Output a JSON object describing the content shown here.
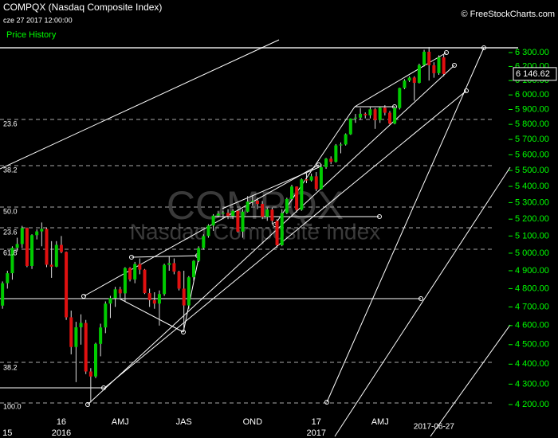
{
  "header": {
    "title": "COMPQX (Nasdaq Composite Index)",
    "timestamp": "cze 27 2017 12:00:00",
    "panel": "Price History",
    "copyright": "© FreeStockCharts.com"
  },
  "chart_data": {
    "type": "candlestick",
    "log_scale": true,
    "watermark": [
      "COMPQX",
      "Nasdaq Composite Index"
    ],
    "up_color": "#00cc00",
    "down_color": "#e01010",
    "ylim": [
      4200,
      6300
    ],
    "yticks": [
      {
        "value": 4200,
        "label": "4 200.00"
      },
      {
        "value": 4300,
        "label": "4 300.00"
      },
      {
        "value": 4400,
        "label": "4 400.00"
      },
      {
        "value": 4500,
        "label": "4 500.00"
      },
      {
        "value": 4600,
        "label": "4 600.00"
      },
      {
        "value": 4700,
        "label": "4 700.00"
      },
      {
        "value": 4800,
        "label": "4 800.00"
      },
      {
        "value": 4900,
        "label": "4 900.00"
      },
      {
        "value": 5000,
        "label": "5 000.00"
      },
      {
        "value": 5100,
        "label": "5 100.00"
      },
      {
        "value": 5200,
        "label": "5 200.00"
      },
      {
        "value": 5300,
        "label": "5 300.00"
      },
      {
        "value": 5400,
        "label": "5 400.00"
      },
      {
        "value": 5500,
        "label": "5 500.00"
      },
      {
        "value": 5600,
        "label": "5 600.00"
      },
      {
        "value": 5700,
        "label": "5 700.00"
      },
      {
        "value": 5800,
        "label": "5 800.00"
      },
      {
        "value": 5900,
        "label": "5 900.00"
      },
      {
        "value": 6000,
        "label": "6 000.00"
      },
      {
        "value": 6100,
        "label": "6 100.00"
      },
      {
        "value": 6200,
        "label": "6 200.00"
      },
      {
        "value": 6300,
        "label": "6 300.00"
      }
    ],
    "last_price_label": "6 146.62",
    "fib_levels": [
      "23.6",
      "38.2",
      "50.0",
      "23.6",
      "61.8",
      "38.2",
      "100.0"
    ],
    "categories": [
      null,
      null,
      null,
      null,
      null,
      null,
      null,
      null,
      null,
      null,
      null,
      null,
      null,
      "16",
      null,
      null,
      null,
      null,
      null,
      null,
      null,
      null,
      null,
      null,
      null,
      "AMJ",
      null,
      null,
      null,
      null,
      null,
      null,
      null,
      null,
      null,
      null,
      null,
      null,
      "JAS",
      null,
      null,
      null,
      null,
      null,
      null,
      null,
      null,
      null,
      null,
      null,
      null,
      null,
      "OND",
      null,
      null,
      null,
      null,
      null,
      null,
      null,
      null,
      null,
      null,
      null,
      null,
      "17",
      null,
      null,
      null,
      null,
      null,
      null,
      null,
      null,
      null,
      null,
      null,
      null,
      "AMJ",
      null,
      null,
      null,
      null,
      null,
      null,
      null,
      null,
      null,
      null,
      null,
      null,
      null
    ],
    "years": [
      null,
      null,
      "15",
      null,
      null,
      null,
      null,
      null,
      null,
      null,
      null,
      null,
      null,
      "2016",
      null,
      null,
      null,
      null,
      null,
      null,
      null,
      null,
      null,
      null,
      null,
      null,
      null,
      null,
      null,
      null,
      null,
      null,
      null,
      null,
      null,
      null,
      null,
      null,
      null,
      null,
      null,
      null,
      null,
      null,
      null,
      null,
      null,
      null,
      null,
      null,
      null,
      null,
      null,
      null,
      null,
      null,
      null,
      null,
      null,
      null,
      null,
      null,
      null,
      null,
      null,
      "2017",
      null,
      null,
      null,
      null,
      null,
      null,
      null,
      null,
      null,
      null,
      null,
      null,
      null,
      null,
      null,
      null,
      null,
      null,
      null,
      null,
      null,
      null,
      null,
      "2017-06-27",
      null,
      null
    ],
    "ohlc": [
      [
        4600,
        4720,
        4550,
        4707
      ],
      [
        4707,
        4840,
        4690,
        4830
      ],
      [
        4830,
        4900,
        4800,
        4886
      ],
      [
        4886,
        5040,
        4850,
        5031
      ],
      [
        5031,
        5090,
        5010,
        5053
      ],
      [
        5053,
        5160,
        5030,
        5147
      ],
      [
        5147,
        5150,
        4920,
        4927
      ],
      [
        4927,
        5110,
        4910,
        5105
      ],
      [
        5105,
        5140,
        5080,
        5127
      ],
      [
        5127,
        5180,
        5040,
        5142
      ],
      [
        5142,
        5150,
        4920,
        4934
      ],
      [
        4934,
        5070,
        4860,
        4923
      ],
      [
        4923,
        5070,
        4920,
        5048
      ],
      [
        5048,
        5100,
        5000,
        5007
      ],
      [
        5007,
        5010,
        4630,
        4644
      ],
      [
        4644,
        4680,
        4450,
        4488
      ],
      [
        4488,
        4620,
        4310,
        4591
      ],
      [
        4591,
        4660,
        4500,
        4614
      ],
      [
        4614,
        4630,
        4350,
        4363
      ],
      [
        4363,
        4380,
        4210,
        4338
      ],
      [
        4338,
        4510,
        4330,
        4504
      ],
      [
        4504,
        4610,
        4440,
        4590
      ],
      [
        4590,
        4730,
        4560,
        4718
      ],
      [
        4718,
        4760,
        4640,
        4748
      ],
      [
        4748,
        4810,
        4700,
        4796
      ],
      [
        4796,
        4810,
        4750,
        4774
      ],
      [
        4774,
        4920,
        4730,
        4915
      ],
      [
        4915,
        4920,
        4840,
        4851
      ],
      [
        4851,
        4950,
        4830,
        4938
      ],
      [
        4938,
        4970,
        4880,
        4906
      ],
      [
        4906,
        4910,
        4770,
        4775
      ],
      [
        4775,
        4800,
        4700,
        4737
      ],
      [
        4737,
        4780,
        4690,
        4718
      ],
      [
        4718,
        4790,
        4600,
        4770
      ],
      [
        4770,
        4940,
        4760,
        4933
      ],
      [
        4933,
        4980,
        4900,
        4943
      ],
      [
        4943,
        4970,
        4880,
        4895
      ],
      [
        4895,
        4900,
        4790,
        4800
      ],
      [
        4800,
        4900,
        4570,
        4708
      ],
      [
        4708,
        4870,
        4690,
        4863
      ],
      [
        4863,
        4960,
        4840,
        4956
      ],
      [
        4956,
        5040,
        4950,
        5030
      ],
      [
        5030,
        5110,
        5020,
        5100
      ],
      [
        5100,
        5170,
        5090,
        5162
      ],
      [
        5162,
        5230,
        5130,
        5221
      ],
      [
        5221,
        5250,
        5210,
        5233
      ],
      [
        5233,
        5250,
        5200,
        5238
      ],
      [
        5238,
        5260,
        5200,
        5219
      ],
      [
        5219,
        5260,
        5200,
        5250
      ],
      [
        5250,
        5260,
        5120,
        5126
      ],
      [
        5126,
        5260,
        5090,
        5245
      ],
      [
        5245,
        5340,
        5240,
        5306
      ],
      [
        5306,
        5340,
        5280,
        5312
      ],
      [
        5312,
        5330,
        5260,
        5292
      ],
      [
        5292,
        5310,
        5200,
        5214
      ],
      [
        5214,
        5270,
        5190,
        5258
      ],
      [
        5258,
        5270,
        5170,
        5190
      ],
      [
        5190,
        5200,
        5030,
        5046
      ],
      [
        5046,
        5260,
        5040,
        5237
      ],
      [
        5237,
        5330,
        5230,
        5322
      ],
      [
        5322,
        5410,
        5320,
        5399
      ],
      [
        5399,
        5400,
        5240,
        5256
      ],
      [
        5256,
        5450,
        5250,
        5444
      ],
      [
        5444,
        5490,
        5420,
        5437
      ],
      [
        5437,
        5480,
        5430,
        5463
      ],
      [
        5463,
        5490,
        5370,
        5383
      ],
      [
        5383,
        5540,
        5380,
        5521
      ],
      [
        5521,
        5580,
        5510,
        5575
      ],
      [
        5575,
        5590,
        5540,
        5555
      ],
      [
        5555,
        5670,
        5550,
        5661
      ],
      [
        5661,
        5680,
        5610,
        5667
      ],
      [
        5667,
        5740,
        5660,
        5734
      ],
      [
        5734,
        5840,
        5730,
        5839
      ],
      [
        5839,
        5870,
        5810,
        5845
      ],
      [
        5845,
        5910,
        5830,
        5871
      ],
      [
        5871,
        5880,
        5840,
        5861
      ],
      [
        5861,
        5920,
        5840,
        5901
      ],
      [
        5901,
        5910,
        5770,
        5829
      ],
      [
        5829,
        5920,
        5810,
        5912
      ],
      [
        5912,
        5930,
        5860,
        5878
      ],
      [
        5878,
        5890,
        5800,
        5805
      ],
      [
        5805,
        5920,
        5800,
        5910
      ],
      [
        5910,
        6050,
        5900,
        6048
      ],
      [
        6048,
        6110,
        6040,
        6100
      ],
      [
        6100,
        6130,
        6090,
        6121
      ],
      [
        6121,
        6130,
        5960,
        6084
      ],
      [
        6084,
        6220,
        6080,
        6210
      ],
      [
        6210,
        6320,
        6200,
        6306
      ],
      [
        6306,
        6340,
        6100,
        6208
      ],
      [
        6208,
        6230,
        6120,
        6152
      ],
      [
        6152,
        6280,
        6140,
        6265
      ],
      [
        6265,
        6290,
        6130,
        6146.62
      ]
    ]
  }
}
